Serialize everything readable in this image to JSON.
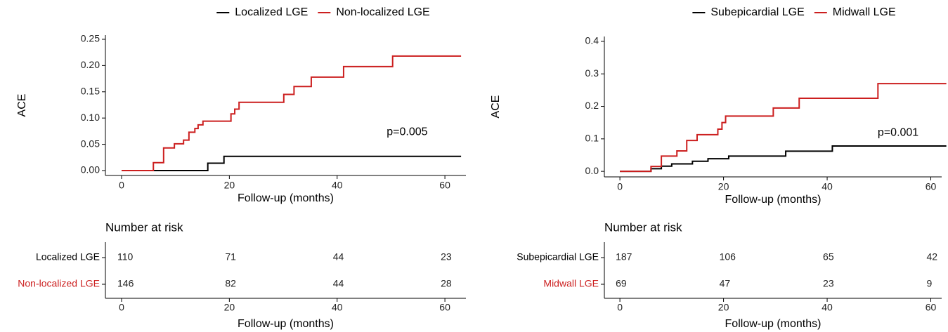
{
  "chart_data": [
    {
      "type": "step",
      "xlabel": "Follow-up (months)",
      "ylabel": "ACE",
      "xlim": [
        -3,
        63.9
      ],
      "xticks": [
        0,
        20,
        40,
        60
      ],
      "ylim": [
        -0.0094,
        0.258
      ],
      "yticks": [
        {
          "value": 0,
          "label": "0.00"
        },
        {
          "value": 0.05,
          "label": "0.05"
        },
        {
          "value": 0.1,
          "label": "0.10"
        },
        {
          "value": 0.15,
          "label": "0.15"
        },
        {
          "value": 0.2,
          "label": "0.20"
        },
        {
          "value": 0.25,
          "label": "0.25"
        }
      ],
      "series": [
        {
          "name": "Localized LGE",
          "color": "#000000",
          "x": [
            0,
            16,
            19,
            63
          ],
          "values": [
            0,
            0.014,
            0.027,
            0.027
          ]
        },
        {
          "name": "Non-localized LGE",
          "color": "#cc1f1f",
          "x": [
            0,
            5.9,
            7.8,
            9.8,
            11.5,
            12.5,
            13.6,
            14.2,
            15.1,
            20.3,
            21,
            21.8,
            30.1,
            32,
            35.2,
            41.2,
            50.3,
            63
          ],
          "values": [
            0,
            0.015,
            0.043,
            0.051,
            0.058,
            0.073,
            0.08,
            0.087,
            0.094,
            0.108,
            0.117,
            0.13,
            0.145,
            0.16,
            0.178,
            0.198,
            0.218,
            0.218
          ]
        }
      ],
      "annotation": {
        "text": "p=0.005",
        "x": 53,
        "y": 0.073
      },
      "risk_table": {
        "title": "Number at risk",
        "xlabel": "Follow-up (months)",
        "xticks": [
          0,
          20,
          40,
          60
        ],
        "rows": [
          {
            "name": "Localized LGE",
            "color": "#000000",
            "values": [
              110,
              71,
              44,
              23
            ]
          },
          {
            "name": "Non-localized LGE",
            "color": "#cc1f1f",
            "values": [
              146,
              82,
              44,
              28
            ]
          }
        ]
      }
    },
    {
      "type": "step",
      "xlabel": "Follow-up (months)",
      "ylabel": "ACE",
      "xlim": [
        -3,
        62.1
      ],
      "xticks": [
        0,
        20,
        40,
        60
      ],
      "ylim": [
        -0.017,
        0.415
      ],
      "yticks": [
        {
          "value": 0,
          "label": "0.0"
        },
        0.1,
        0.2,
        0.3,
        0.4
      ],
      "series": [
        {
          "name": "Subepicardial LGE",
          "color": "#000000",
          "x": [
            0,
            6,
            8,
            10,
            14,
            17,
            21,
            32,
            41,
            63
          ],
          "values": [
            0,
            0.008,
            0.016,
            0.023,
            0.031,
            0.039,
            0.047,
            0.062,
            0.078,
            0.078
          ]
        },
        {
          "name": "Midwall LGE",
          "color": "#cc1f1f",
          "x": [
            0,
            6,
            8,
            11,
            12.9,
            14.9,
            18.9,
            19.7,
            20.4,
            29.6,
            34.6,
            49.8,
            63
          ],
          "values": [
            0,
            0.015,
            0.047,
            0.063,
            0.095,
            0.113,
            0.13,
            0.15,
            0.17,
            0.195,
            0.225,
            0.27,
            0.27
          ]
        }
      ],
      "annotation": {
        "text": "p=0.001",
        "x": 53.7,
        "y": 0.118
      },
      "risk_table": {
        "title": "Number at risk",
        "xlabel": "Follow-up (months)",
        "xticks": [
          0,
          20,
          40,
          60
        ],
        "rows": [
          {
            "name": "Subepicardial LGE",
            "color": "#000000",
            "values": [
              187,
              106,
              65,
              42
            ]
          },
          {
            "name": "Midwall LGE",
            "color": "#cc1f1f",
            "values": [
              69,
              47,
              23,
              9
            ]
          }
        ]
      }
    }
  ]
}
